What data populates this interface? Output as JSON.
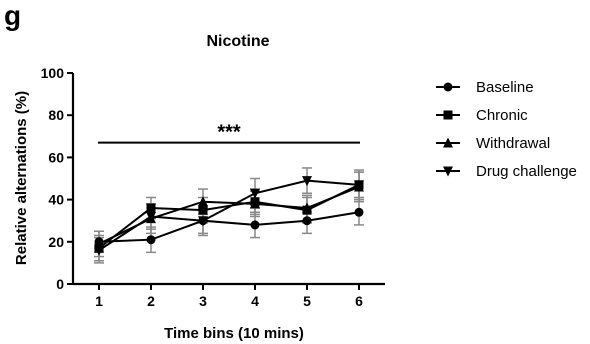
{
  "panel_label": "g",
  "chart_data": {
    "type": "line",
    "title": "Nicotine",
    "xlabel": "Time bins (10 mins)",
    "ylabel": "Relative alternations (%)",
    "categories": [
      "1",
      "2",
      "3",
      "4",
      "5",
      "6"
    ],
    "x": [
      1,
      2,
      3,
      4,
      5,
      6
    ],
    "xlim": [
      0.5,
      6.5
    ],
    "ylim": [
      0,
      100
    ],
    "yticks": [
      0,
      20,
      40,
      60,
      80,
      100
    ],
    "grid": false,
    "legend_position": "right",
    "significance": {
      "label": "***",
      "from_x": 1,
      "to_x": 6,
      "y": 67
    },
    "series": [
      {
        "name": "Baseline",
        "marker": "circle",
        "values": [
          20,
          21,
          30,
          28,
          30,
          34
        ],
        "errors": [
          5,
          6,
          6,
          6,
          6,
          6
        ]
      },
      {
        "name": "Chronic",
        "marker": "square",
        "values": [
          17,
          36,
          35,
          39,
          35,
          47
        ],
        "errors": [
          6,
          5,
          6,
          6,
          6,
          6
        ]
      },
      {
        "name": "Withdrawal",
        "marker": "triangle-up",
        "values": [
          19,
          31,
          39,
          38,
          36,
          46
        ],
        "errors": [
          6,
          7,
          6,
          6,
          6,
          7
        ]
      },
      {
        "name": "Drug challenge",
        "marker": "triangle-down",
        "values": [
          16,
          32,
          30,
          43,
          49,
          47
        ],
        "errors": [
          6,
          6,
          7,
          7,
          6,
          7
        ]
      }
    ],
    "colors": {
      "line": "#000000",
      "error_bar": "#888888"
    }
  }
}
